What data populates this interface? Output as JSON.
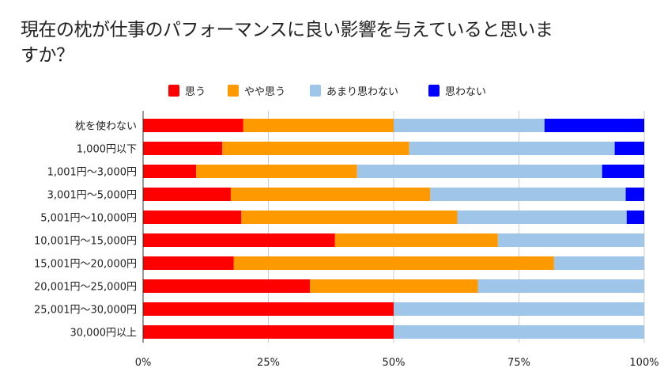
{
  "chart_data": {
    "type": "bar",
    "orientation": "horizontal",
    "stacked": "percent",
    "title": "現在の枕が仕事のパフォーマンスに良い影響を与えていると思いますか？",
    "title_lines": [
      "現在の枕が仕事のパフォーマンスに良い影響を与えていると思いま",
      "すか？"
    ],
    "xlabel": "",
    "ylabel": "",
    "xlim": [
      0,
      100
    ],
    "grid": true,
    "legend_position": "top",
    "x_ticks": [
      "0%",
      "25%",
      "50%",
      "75%",
      "100%"
    ],
    "x_tick_values": [
      0,
      25,
      50,
      75,
      100
    ],
    "categories": [
      "枕を使わない",
      "1,000円以下",
      "1,001円～3,000円",
      "3,001円～5,000円",
      "5,001円～10,000円",
      "10,001円～15,000円",
      "15,001円～20,000円",
      "20,001円～25,000円",
      "25,001円～30,000円",
      "30,000円以上"
    ],
    "series": [
      {
        "name": "思う",
        "color": "#ff0000",
        "values": [
          20.0,
          15.8,
          10.6,
          17.5,
          19.6,
          38.3,
          18.1,
          33.3,
          50.0,
          50.0
        ]
      },
      {
        "name": "やや思う",
        "color": "#ff9900",
        "values": [
          30.0,
          37.3,
          32.1,
          39.8,
          43.1,
          32.5,
          63.9,
          33.5,
          0.0,
          0.0
        ]
      },
      {
        "name": "あまり思わない",
        "color": "#9fc5e8",
        "values": [
          30.1,
          41.0,
          48.9,
          39.0,
          33.8,
          29.2,
          18.0,
          33.2,
          50.0,
          50.0
        ]
      },
      {
        "name": "思わない",
        "color": "#0000ff",
        "values": [
          19.9,
          5.9,
          8.4,
          3.7,
          3.5,
          0.0,
          0.0,
          0.0,
          0.0,
          0.0
        ]
      }
    ]
  }
}
